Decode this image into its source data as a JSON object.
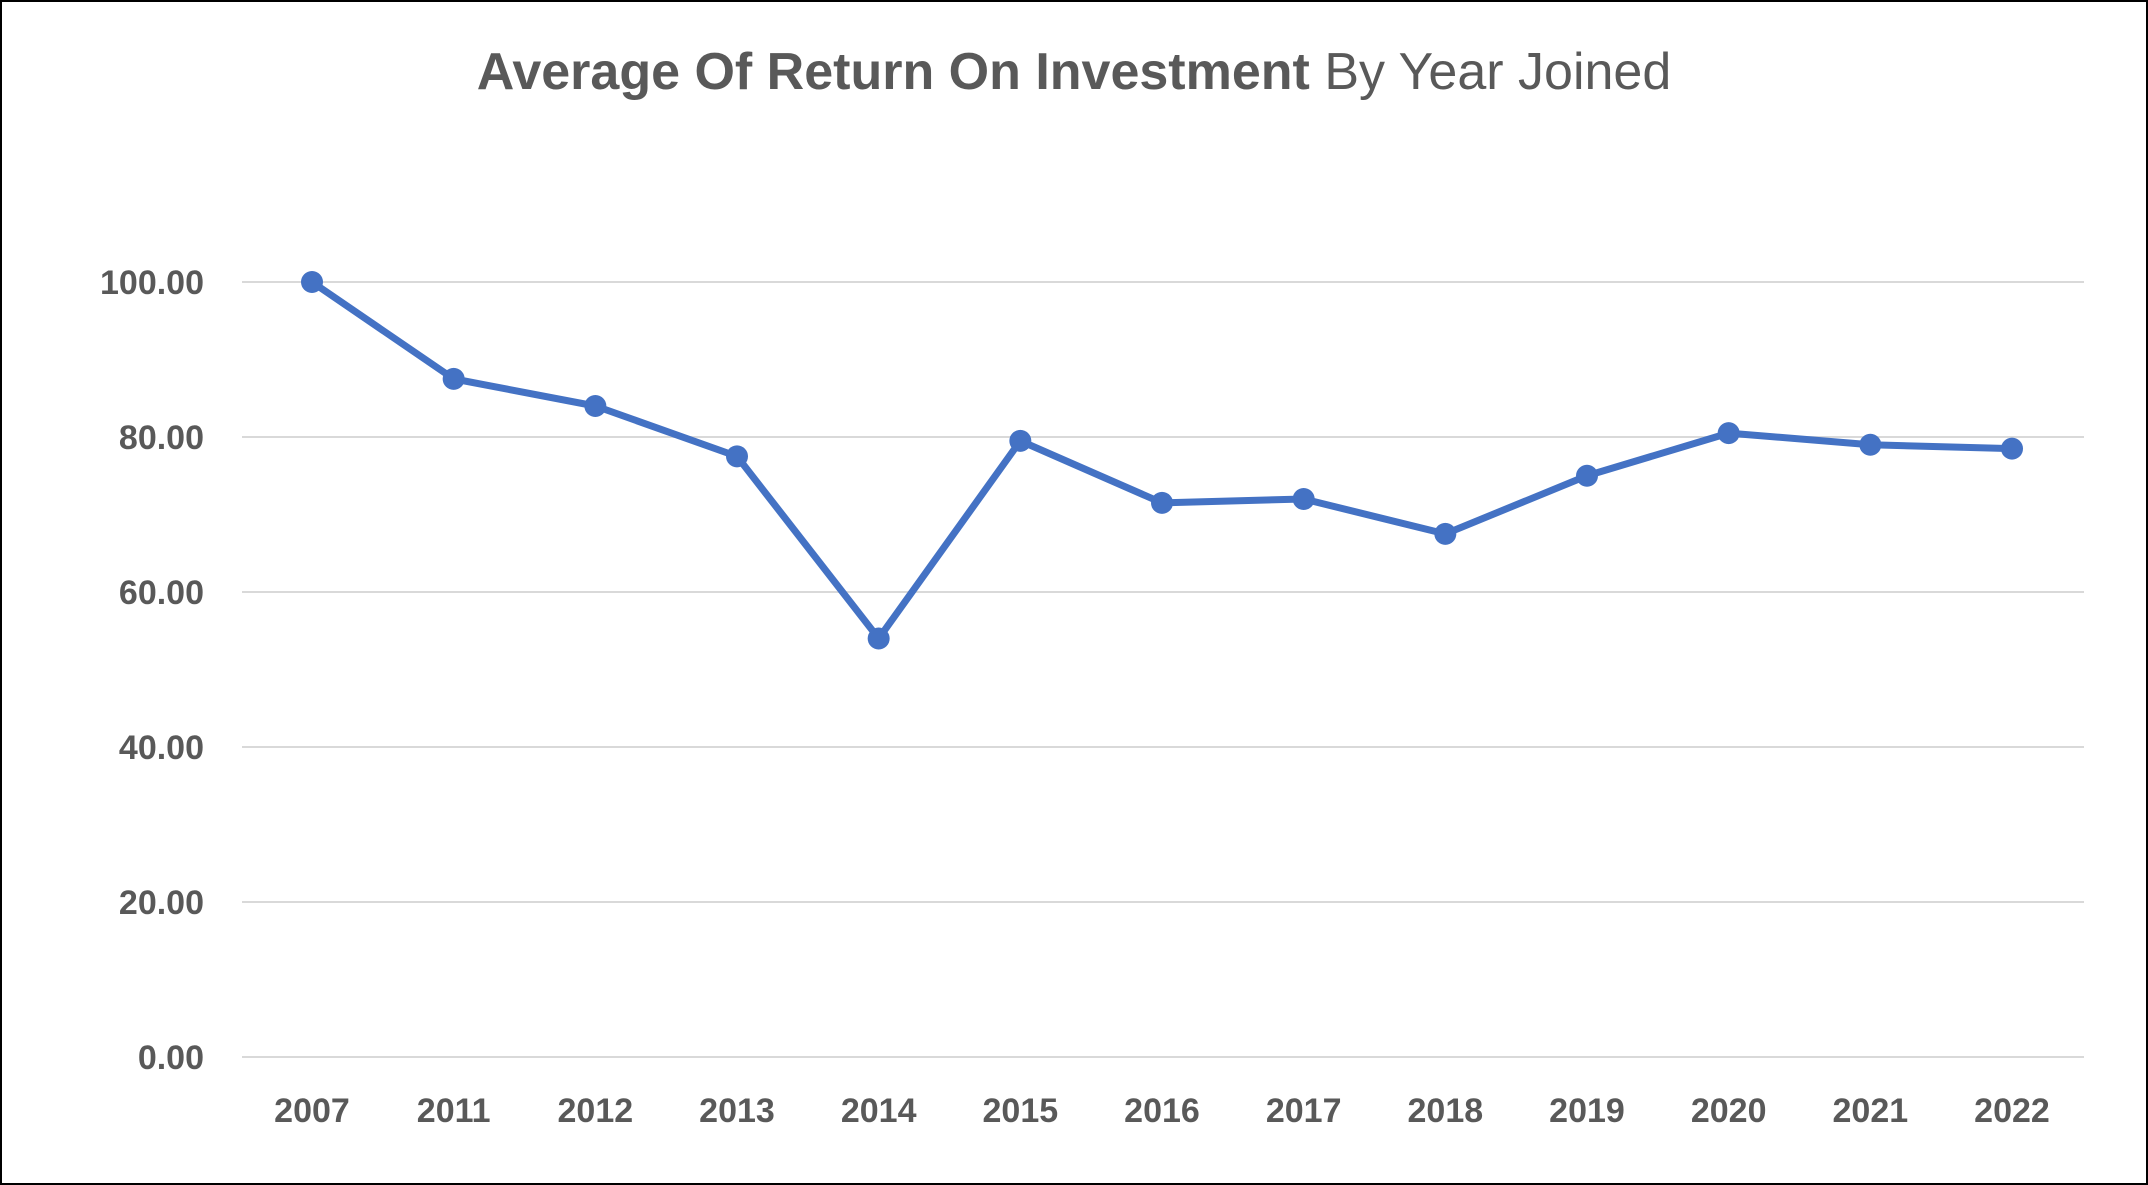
{
  "chart_data": {
    "type": "line",
    "title": "Average Of Return On Investment By Year Joined",
    "title_parts": {
      "bold": "Average Of Return On Investment",
      "regular": "By Year Joined"
    },
    "xlabel": "",
    "ylabel": "",
    "categories": [
      "2007",
      "2011",
      "2012",
      "2013",
      "2014",
      "2015",
      "2016",
      "2017",
      "2018",
      "2019",
      "2020",
      "2021",
      "2022"
    ],
    "series": [
      {
        "values": [
          100.0,
          87.5,
          84.0,
          77.5,
          54.0,
          79.5,
          71.5,
          72.0,
          67.5,
          75.0,
          80.5,
          79.0,
          78.5
        ]
      }
    ],
    "ylim": [
      0,
      100
    ],
    "yticks": [
      0,
      20,
      40,
      60,
      80,
      100
    ],
    "ytick_labels": [
      "0.00",
      "20.00",
      "40.00",
      "60.00",
      "80.00",
      "100.00"
    ],
    "grid": true,
    "legend": "none",
    "colors": {
      "line": "#4472C4",
      "grid": "#D9D9D9",
      "text": "#595959"
    }
  }
}
